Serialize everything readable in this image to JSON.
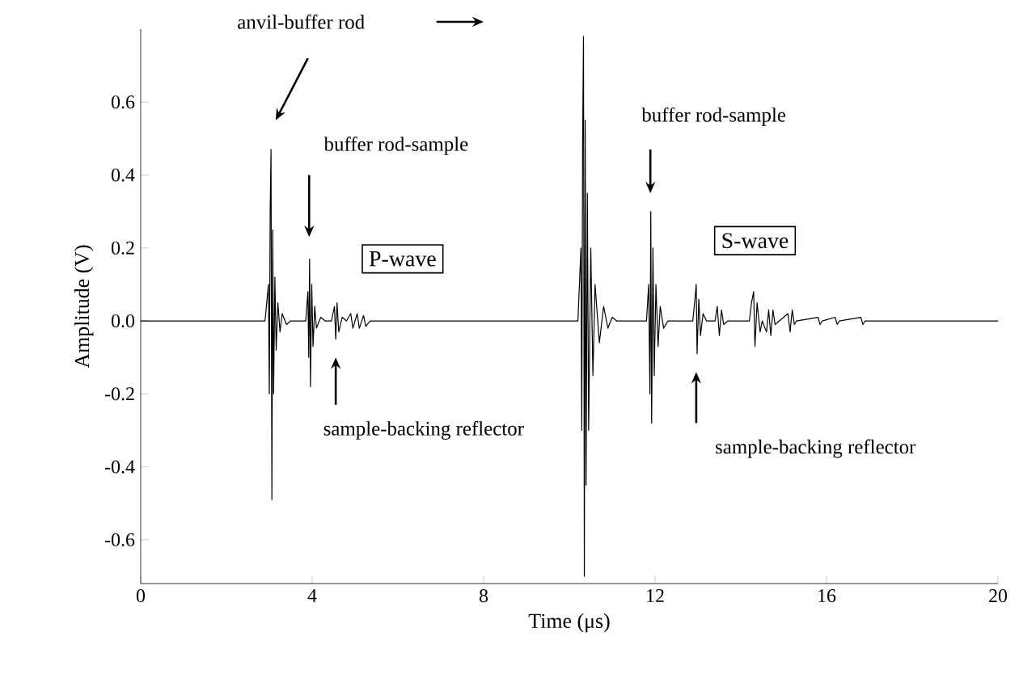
{
  "chart_data": {
    "type": "line",
    "xlabel": "Time (μs)",
    "ylabel": "Amplitude (V)",
    "color": "#000000",
    "x": [
      0,
      2.9,
      2.98,
      3.0,
      3.02,
      3.04,
      3.06,
      3.08,
      3.1,
      3.13,
      3.16,
      3.2,
      3.25,
      3.3,
      3.4,
      3.5,
      3.85,
      3.9,
      3.92,
      3.94,
      3.96,
      3.99,
      4.02,
      4.06,
      4.1,
      4.2,
      4.3,
      4.45,
      4.52,
      4.55,
      4.58,
      4.62,
      4.7,
      4.8,
      4.9,
      4.95,
      5.05,
      5.1,
      5.2,
      5.25,
      5.35,
      10.2,
      10.27,
      10.29,
      10.31,
      10.33,
      10.35,
      10.37,
      10.39,
      10.42,
      10.45,
      10.5,
      10.55,
      10.6,
      10.7,
      10.8,
      10.9,
      11.0,
      11.1,
      11.8,
      11.85,
      11.88,
      11.9,
      11.92,
      11.95,
      11.98,
      12.02,
      12.07,
      12.12,
      12.2,
      12.3,
      12.88,
      12.93,
      12.96,
      12.98,
      13.02,
      13.06,
      13.12,
      13.2,
      13.4,
      13.45,
      13.5,
      13.55,
      13.6,
      13.7,
      14.2,
      14.25,
      14.3,
      14.33,
      14.38,
      14.45,
      14.5,
      14.6,
      14.65,
      14.7,
      14.75,
      14.8,
      14.9,
      15.1,
      15.15,
      15.2,
      15.25,
      15.3,
      15.8,
      15.85,
      15.9,
      16.2,
      16.25,
      16.3,
      16.8,
      16.85,
      16.9,
      20
    ],
    "values": [
      0,
      0,
      0.1,
      -0.2,
      0.3,
      0.47,
      -0.49,
      0.25,
      -0.2,
      0.12,
      -0.08,
      0.05,
      -0.03,
      0.02,
      -0.01,
      0,
      0,
      0.08,
      -0.1,
      0.17,
      -0.18,
      0.1,
      -0.07,
      0.04,
      -0.02,
      0.01,
      0,
      0,
      0.04,
      -0.05,
      0.05,
      -0.03,
      0.01,
      0,
      0.02,
      -0.02,
      0.02,
      -0.02,
      0.015,
      -0.015,
      0,
      0,
      0.2,
      -0.3,
      0.5,
      0.78,
      -0.7,
      0.55,
      -0.45,
      0.35,
      -0.3,
      0.2,
      -0.15,
      0.1,
      -0.06,
      0.04,
      -0.02,
      0.01,
      0,
      0,
      0.1,
      -0.2,
      0.3,
      -0.28,
      0.2,
      -0.15,
      0.1,
      -0.07,
      0.04,
      -0.02,
      0,
      0,
      0.06,
      0.1,
      -0.09,
      0.06,
      -0.04,
      0.02,
      0,
      0,
      0.04,
      -0.04,
      0.03,
      -0.01,
      0,
      0,
      0.05,
      0.08,
      -0.07,
      0.05,
      -0.03,
      0,
      -0.03,
      0.03,
      -0.04,
      0.03,
      -0.01,
      0,
      0.02,
      -0.03,
      0.03,
      -0.01,
      0,
      0.01,
      -0.01,
      0,
      0.01,
      -0.01,
      0,
      0.01,
      -0.01,
      0,
      0
    ],
    "xlim": [
      0,
      20
    ],
    "ylim": [
      -0.72,
      0.8
    ],
    "xticks": [
      0,
      4,
      8,
      12,
      16,
      20
    ],
    "yticks": [
      -0.6,
      -0.4,
      -0.2,
      {
        "value": 0,
        "label": "0.0"
      },
      0.2,
      0.4,
      0.6
    ],
    "grid": false,
    "marker": "none",
    "line_style": "solid",
    "annotations": [
      "anvil-buffer rod",
      "buffer rod-sample",
      "sample-backing reflector",
      "buffer rod-sample",
      "sample-backing reflector",
      "P-wave",
      "S-wave"
    ]
  }
}
